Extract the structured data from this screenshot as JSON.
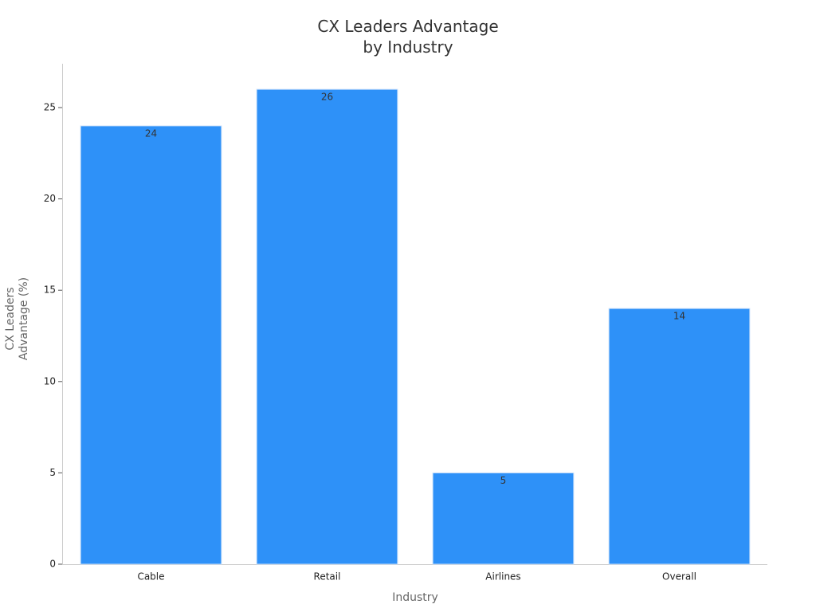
{
  "chart_data": {
    "type": "bar",
    "title": "CX Leaders Advantage\nby Industry",
    "x_label": "Industry",
    "y_label": "CX Leaders\nAdvantage (%)",
    "categories": [
      "Cable",
      "Retail",
      "Airlines",
      "Overall"
    ],
    "values": [
      24,
      26,
      5,
      14
    ],
    "color": "#2e91f8",
    "ylim": [
      0,
      27.4
    ],
    "yticks": [
      0,
      5,
      10,
      15,
      20,
      25
    ],
    "grid": false
  }
}
